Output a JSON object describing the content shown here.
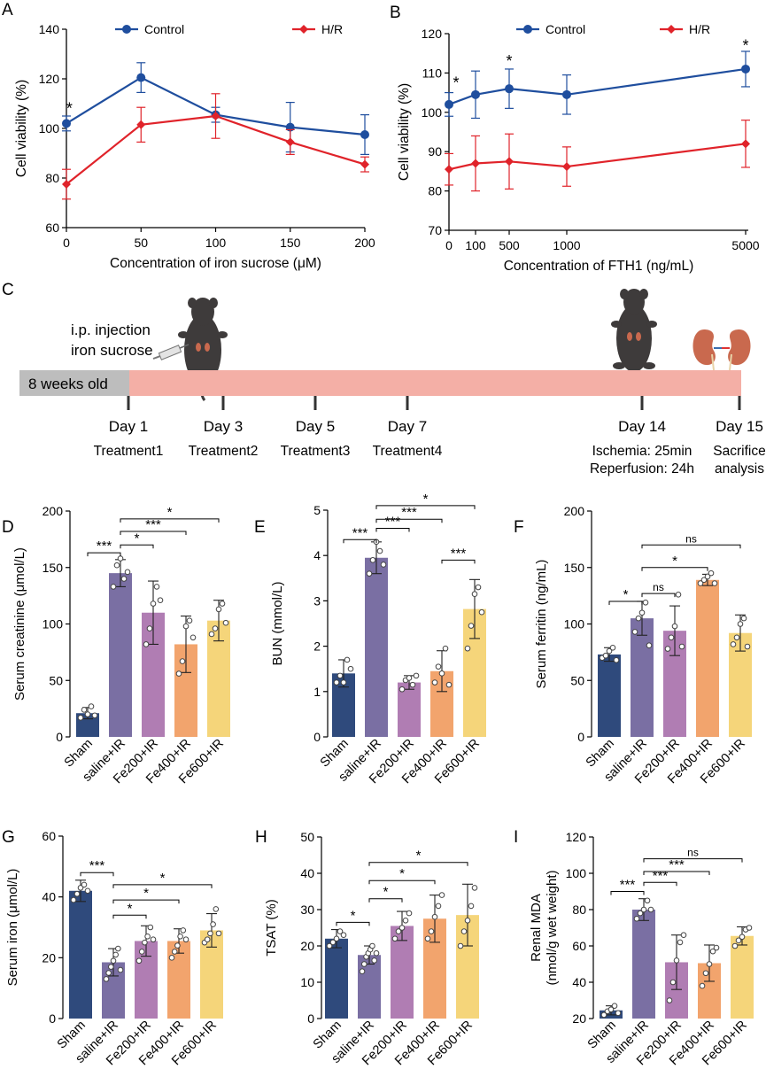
{
  "figure": {
    "panel_c": {
      "label": "C",
      "injection_text": [
        "i.p. injection",
        "iron sucrose"
      ],
      "start_label": "8 weeks old",
      "days": [
        {
          "day": "Day 1",
          "detail": [
            "Treatment1"
          ]
        },
        {
          "day": "Day 3",
          "detail": [
            "Treatment2"
          ]
        },
        {
          "day": "Day 5",
          "detail": [
            "Treatment3"
          ]
        },
        {
          "day": "Day 7",
          "detail": [
            "Treatment4"
          ]
        },
        {
          "day": "Day 14",
          "detail": [
            "Ischemia: 25min",
            "Reperfusion: 24h"
          ]
        },
        {
          "day": "Day 15",
          "detail": [
            "Sacrifice",
            "analysis"
          ]
        }
      ],
      "colors": {
        "pre": "#bdbdbd",
        "timeline": "#f4afa6",
        "mouse": "#3e3b3b",
        "kidney": "#c9694e"
      }
    }
  },
  "chart_data": [
    {
      "panel": "A",
      "type": "line",
      "xlabel": "Concentration of iron sucrose (μM)",
      "ylabel": "Cell viability (%)",
      "ylim": [
        60,
        140
      ],
      "yticks": [
        60,
        80,
        100,
        120,
        140
      ],
      "xlim": [
        0,
        200
      ],
      "xticks": [
        0,
        50,
        100,
        150,
        200
      ],
      "x": [
        0,
        50,
        100,
        150,
        200
      ],
      "series": [
        {
          "name": "Control",
          "color": "#1f4e9e",
          "marker": "circle",
          "values": [
            102,
            120.5,
            105.5,
            100.5,
            97.5
          ],
          "errors": [
            3,
            6,
            3,
            10,
            8
          ]
        },
        {
          "name": "H/R",
          "color": "#e0232a",
          "marker": "diamond",
          "values": [
            77.5,
            101.5,
            105,
            94.5,
            85.5
          ],
          "errors": [
            6,
            7,
            9,
            5,
            3
          ]
        }
      ],
      "annotations": [
        {
          "text": "*",
          "x": 2,
          "y": 108
        }
      ]
    },
    {
      "panel": "B",
      "type": "line",
      "xlabel": "Concentration of FTH1 (ng/mL)",
      "ylabel": "Cell viability (%)",
      "ylim": [
        70,
        120
      ],
      "yticks": [
        70,
        80,
        90,
        100,
        110,
        120
      ],
      "xtick_labels": [
        "0",
        "100",
        "500",
        "1000",
        "5000"
      ],
      "series": [
        {
          "name": "Control",
          "color": "#1f4e9e",
          "marker": "circle",
          "values": [
            102,
            104.5,
            106,
            104.5,
            111
          ],
          "errors": [
            3,
            6,
            5,
            5,
            4.5
          ]
        },
        {
          "name": "H/R",
          "color": "#e0232a",
          "marker": "diamond",
          "values": [
            85.5,
            87,
            87.5,
            86.2,
            92
          ],
          "errors": [
            4,
            7,
            7,
            5,
            6
          ]
        }
      ],
      "annotations": [
        {
          "text": "*",
          "index": 0,
          "y": 107.5
        },
        {
          "text": "*",
          "index": 2,
          "y": 113
        },
        {
          "text": "*",
          "index": 4,
          "y": 117
        }
      ]
    },
    {
      "panel": "D",
      "type": "bar",
      "ylabel": "Serum creatinine (μmol/L)",
      "ylim": [
        0,
        200
      ],
      "yticks": [
        0,
        50,
        100,
        150,
        200
      ],
      "categories": [
        "Sham",
        "saline+IR",
        "Fe200+IR",
        "Fe400+IR",
        "Fe600+IR"
      ],
      "colors": [
        "#2f4a7c",
        "#7a6fa3",
        "#b07db3",
        "#f2a46d",
        "#f5d57a"
      ],
      "values": [
        21,
        145,
        110,
        82,
        103
      ],
      "errors": [
        5,
        12,
        28,
        25,
        18
      ],
      "points": [
        [
          17,
          24,
          20,
          27,
          19
        ],
        [
          133,
          152,
          158,
          140,
          146
        ],
        [
          82,
          96,
          118,
          133,
          121
        ],
        [
          56,
          67,
          98,
          103,
          88
        ],
        [
          91,
          96,
          113,
          118,
          101
        ]
      ],
      "comparisons": [
        {
          "from": 0,
          "to": 1,
          "label": "***",
          "y": 163
        },
        {
          "from": 1,
          "to": 2,
          "label": "*",
          "y": 170
        },
        {
          "from": 1,
          "to": 3,
          "label": "***",
          "y": 182
        },
        {
          "from": 1,
          "to": 4,
          "label": "*",
          "y": 193
        }
      ]
    },
    {
      "panel": "E",
      "type": "bar",
      "ylabel": "BUN (mmol/L)",
      "ylim": [
        0,
        5
      ],
      "yticks": [
        0,
        1,
        2,
        3,
        4,
        5
      ],
      "categories": [
        "Sham",
        "saline+IR",
        "Fe200+IR",
        "Fe400+IR",
        "Fe600+IR"
      ],
      "colors": [
        "#2f4a7c",
        "#7a6fa3",
        "#b07db3",
        "#f2a46d",
        "#f5d57a"
      ],
      "values": [
        1.4,
        3.95,
        1.2,
        1.45,
        2.82
      ],
      "errors": [
        0.3,
        0.35,
        0.15,
        0.45,
        0.65
      ],
      "points": [
        [
          1.2,
          1.35,
          1.2,
          1.7,
          1.5
        ],
        [
          3.6,
          3.9,
          4.3,
          4.1,
          3.8
        ],
        [
          1.05,
          1.25,
          1.3,
          1.15,
          1.35
        ],
        [
          1.2,
          1.55,
          1.4,
          1.95,
          1.15
        ],
        [
          1.95,
          2.45,
          3.15,
          3.3,
          2.75
        ]
      ],
      "comparisons": [
        {
          "from": 0,
          "to": 1,
          "label": "***",
          "y": 4.35
        },
        {
          "from": 1,
          "to": 2,
          "label": "***",
          "y": 4.6
        },
        {
          "from": 1,
          "to": 3,
          "label": "***",
          "y": 4.8
        },
        {
          "from": 3,
          "to": 4,
          "label": "***",
          "y": 3.9
        },
        {
          "from": 1,
          "to": 4,
          "label": "*",
          "y": 5.1
        }
      ]
    },
    {
      "panel": "F",
      "type": "bar",
      "ylabel": "Serum ferritin (ng/mL)",
      "ylim": [
        0,
        200
      ],
      "yticks": [
        0,
        50,
        100,
        150,
        200
      ],
      "categories": [
        "Sham",
        "saline+IR",
        "Fe200+IR",
        "Fe400+IR",
        "Fe600+IR"
      ],
      "colors": [
        "#2f4a7c",
        "#7a6fa3",
        "#b07db3",
        "#f2a46d",
        "#f5d57a"
      ],
      "values": [
        73,
        105,
        94,
        139,
        92
      ],
      "errors": [
        6,
        15,
        22,
        5,
        16
      ],
      "points": [
        [
          70,
          72,
          76,
          79,
          68
        ],
        [
          93,
          105,
          110,
          119,
          81
        ],
        [
          78,
          88,
          98,
          126,
          80
        ],
        [
          136,
          139,
          142,
          145,
          136
        ],
        [
          82,
          88,
          100,
          105,
          80
        ]
      ],
      "comparisons": [
        {
          "from": 0,
          "to": 1,
          "label": "*",
          "y": 120
        },
        {
          "from": 1,
          "to": 2,
          "label": "ns",
          "y": 127
        },
        {
          "from": 1,
          "to": 3,
          "label": "*",
          "y": 150
        },
        {
          "from": 1,
          "to": 4,
          "label": "ns",
          "y": 170
        }
      ]
    },
    {
      "panel": "G",
      "type": "bar",
      "ylabel": "Serum iron (μmol/L)",
      "ylim": [
        0,
        60
      ],
      "yticks": [
        0,
        20,
        40,
        60
      ],
      "categories": [
        "Sham",
        "saline+IR",
        "Fe200+IR",
        "Fe400+IR",
        "Fe600+IR"
      ],
      "colors": [
        "#2f4a7c",
        "#7a6fa3",
        "#b07db3",
        "#f2a46d",
        "#f5d57a"
      ],
      "values": [
        42,
        18.5,
        25.5,
        25.5,
        29
      ],
      "errors": [
        3.5,
        4.5,
        5,
        4,
        5.5
      ],
      "points": [
        [
          39,
          41,
          43,
          44,
          42
        ],
        [
          13,
          15,
          17,
          19,
          21,
          23,
          16
        ],
        [
          19,
          22,
          25,
          27,
          30,
          26
        ],
        [
          20,
          22,
          24,
          27,
          29,
          26
        ],
        [
          25,
          26,
          28,
          31,
          36,
          28
        ]
      ],
      "comparisons": [
        {
          "from": 0,
          "to": 1,
          "label": "***",
          "y": 48
        },
        {
          "from": 1,
          "to": 2,
          "label": "*",
          "y": 34
        },
        {
          "from": 1,
          "to": 3,
          "label": "*",
          "y": 39
        },
        {
          "from": 1,
          "to": 4,
          "label": "*",
          "y": 44
        }
      ]
    },
    {
      "panel": "H",
      "type": "bar",
      "ylabel": "TSAT (%)",
      "ylim": [
        0,
        50
      ],
      "yticks": [
        0,
        10,
        20,
        30,
        40,
        50
      ],
      "categories": [
        "Sham",
        "saline+IR",
        "Fe200+IR",
        "Fe400+IR",
        "Fe600+IR"
      ],
      "colors": [
        "#2f4a7c",
        "#7a6fa3",
        "#b07db3",
        "#f2a46d",
        "#f5d57a"
      ],
      "values": [
        22,
        17.5,
        25.5,
        27.5,
        28.5
      ],
      "errors": [
        2.5,
        2.5,
        4,
        6.5,
        8.5
      ],
      "points": [
        [
          20,
          21,
          22,
          24,
          23
        ],
        [
          13,
          15,
          17,
          18,
          19,
          20,
          16,
          18
        ],
        [
          22,
          24,
          25,
          27,
          29
        ],
        [
          22,
          24,
          28,
          31,
          34
        ],
        [
          20,
          24,
          27,
          31,
          36
        ]
      ],
      "comparisons": [
        {
          "from": 0,
          "to": 1,
          "label": "*",
          "y": 26.5
        },
        {
          "from": 1,
          "to": 2,
          "label": "*",
          "y": 33
        },
        {
          "from": 1,
          "to": 3,
          "label": "*",
          "y": 38
        },
        {
          "from": 1,
          "to": 4,
          "label": "*",
          "y": 43
        }
      ]
    },
    {
      "panel": "I",
      "type": "bar",
      "ylabel": "Renal MDA (nmol/g wet weight)",
      "ylabel_lines": [
        "Renal MDA",
        "(nmol/g wet weight)"
      ],
      "ylim": [
        20,
        120
      ],
      "yticks": [
        20,
        40,
        60,
        80,
        100,
        120
      ],
      "categories": [
        "Sham",
        "saline+IR",
        "Fe200+IR",
        "Fe400+IR",
        "Fe600+IR"
      ],
      "colors": [
        "#2f4a7c",
        "#7a6fa3",
        "#b07db3",
        "#f2a46d",
        "#f5d57a"
      ],
      "values": [
        24.5,
        80,
        51,
        50.5,
        65.5
      ],
      "errors": [
        2.5,
        6,
        15,
        10,
        5
      ],
      "points": [
        [
          22,
          24,
          25,
          27,
          23
        ],
        [
          75,
          78,
          80,
          85,
          80
        ],
        [
          30,
          40,
          52,
          62,
          66
        ],
        [
          38,
          45,
          50,
          57,
          59
        ],
        [
          60,
          63,
          65,
          69,
          70
        ]
      ],
      "comparisons": [
        {
          "from": 0,
          "to": 1,
          "label": "***",
          "y": 90
        },
        {
          "from": 1,
          "to": 2,
          "label": "***",
          "y": 95
        },
        {
          "from": 1,
          "to": 3,
          "label": "***",
          "y": 101
        },
        {
          "from": 1,
          "to": 4,
          "label": "ns",
          "y": 108
        }
      ]
    }
  ]
}
